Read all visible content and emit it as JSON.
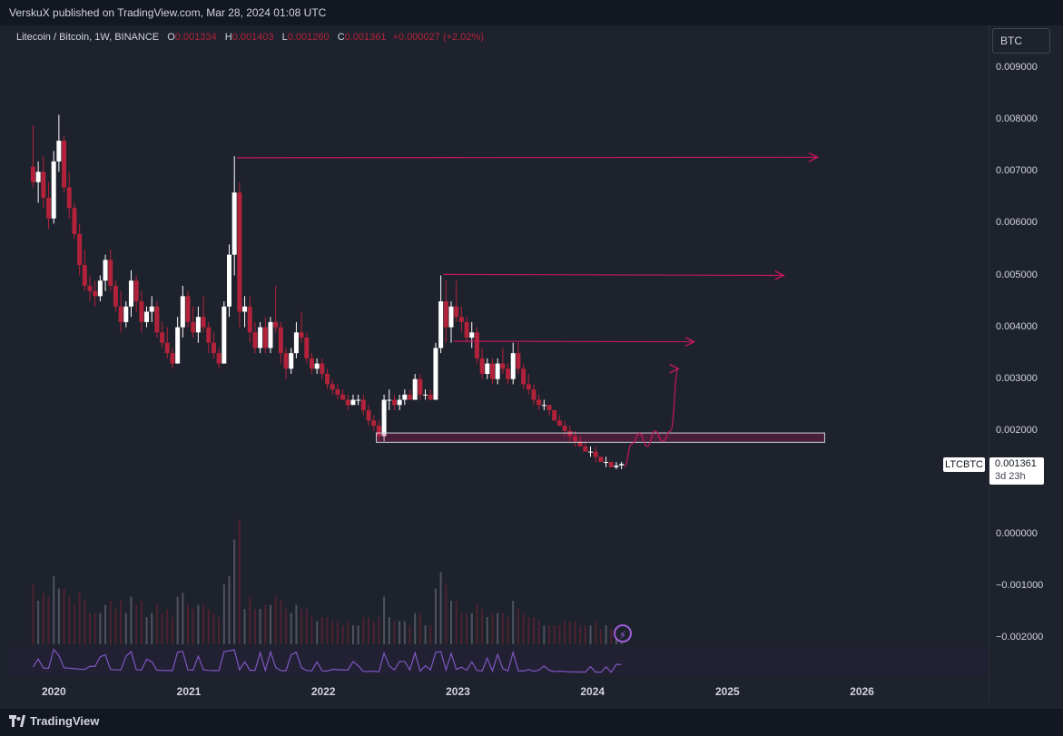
{
  "header": {
    "published": "VerskuX published on TradingView.com, Mar 28, 2024 01:08 UTC"
  },
  "legend": {
    "symbol": "Litecoin / Bitcoin, 1W, BINANCE",
    "o_key": "O",
    "o_val": "0.001334",
    "h_key": "H",
    "h_val": "0.001403",
    "l_key": "L",
    "l_val": "0.001260",
    "c_key": "C",
    "c_val": "0.001361",
    "change": "+0.000027 (+2.02%)"
  },
  "axis": {
    "currency": "BTC",
    "yticks": [
      "0.009000",
      "0.008000",
      "0.007000",
      "0.006000",
      "0.005000",
      "0.004000",
      "0.003000",
      "0.002000",
      "0.000000",
      "−0.001000",
      "−0.002000"
    ],
    "xticks": [
      "2020",
      "2021",
      "2022",
      "2023",
      "2024",
      "2025",
      "2026"
    ]
  },
  "last_price": {
    "ticker": "LTCBTC",
    "price": "0.001361",
    "countdown": "3d 23h"
  },
  "footer": {
    "brand": "TradingView"
  },
  "colors": {
    "up": "#ffffff",
    "down": "#b2223a",
    "drawing": "#c2185b",
    "rsi": "#7e57c2"
  },
  "chart_data": {
    "type": "candlestick",
    "interval": "1W",
    "ylim": [
      -0.0021,
      0.0095
    ],
    "price_scale_visible": [
      0.0,
      0.009
    ],
    "candles": [
      [
        "2019-11-04",
        0.0071,
        0.0079,
        0.0067,
        0.0068
      ],
      [
        "2019-11-18",
        0.0068,
        0.0072,
        0.0064,
        0.007
      ],
      [
        "2019-12-02",
        0.007,
        0.0073,
        0.0063,
        0.0065
      ],
      [
        "2019-12-16",
        0.0065,
        0.0068,
        0.0059,
        0.0061
      ],
      [
        "2019-12-30",
        0.0061,
        0.0074,
        0.006,
        0.0072
      ],
      [
        "2020-01-13",
        0.0072,
        0.0081,
        0.007,
        0.0076
      ],
      [
        "2020-01-27",
        0.0076,
        0.0077,
        0.0066,
        0.0067
      ],
      [
        "2020-02-10",
        0.0067,
        0.007,
        0.0061,
        0.0063
      ],
      [
        "2020-02-24",
        0.0063,
        0.0064,
        0.0057,
        0.0058
      ],
      [
        "2020-03-09",
        0.0058,
        0.006,
        0.005,
        0.0052
      ],
      [
        "2020-03-23",
        0.0052,
        0.0055,
        0.0047,
        0.0048
      ],
      [
        "2020-04-06",
        0.0048,
        0.005,
        0.0045,
        0.0047
      ],
      [
        "2020-04-20",
        0.0047,
        0.0049,
        0.0044,
        0.0046
      ],
      [
        "2020-05-04",
        0.0046,
        0.005,
        0.0045,
        0.0049
      ],
      [
        "2020-05-18",
        0.0049,
        0.0054,
        0.0047,
        0.0053
      ],
      [
        "2020-06-01",
        0.0053,
        0.0055,
        0.0047,
        0.0048
      ],
      [
        "2020-06-15",
        0.0048,
        0.0049,
        0.0043,
        0.0044
      ],
      [
        "2020-06-29",
        0.0044,
        0.0047,
        0.0039,
        0.0041
      ],
      [
        "2020-07-13",
        0.0041,
        0.0045,
        0.004,
        0.0044
      ],
      [
        "2020-07-27",
        0.0044,
        0.0051,
        0.0042,
        0.0049
      ],
      [
        "2020-08-10",
        0.0049,
        0.005,
        0.0043,
        0.0045
      ],
      [
        "2020-08-24",
        0.0045,
        0.0047,
        0.0039,
        0.0041
      ],
      [
        "2020-09-07",
        0.0041,
        0.0044,
        0.004,
        0.0043
      ],
      [
        "2020-09-21",
        0.0043,
        0.0046,
        0.0041,
        0.0044
      ],
      [
        "2020-10-05",
        0.0044,
        0.0045,
        0.0038,
        0.0039
      ],
      [
        "2020-10-19",
        0.0039,
        0.0041,
        0.0036,
        0.0037
      ],
      [
        "2020-11-02",
        0.0037,
        0.004,
        0.0034,
        0.0035
      ],
      [
        "2020-11-16",
        0.0035,
        0.0036,
        0.0032,
        0.0033
      ],
      [
        "2020-11-30",
        0.0033,
        0.0042,
        0.0033,
        0.004
      ],
      [
        "2020-12-14",
        0.004,
        0.0048,
        0.0038,
        0.0046
      ],
      [
        "2020-12-28",
        0.0046,
        0.0047,
        0.004,
        0.0041
      ],
      [
        "2021-01-11",
        0.0041,
        0.0044,
        0.0038,
        0.0039
      ],
      [
        "2021-01-25",
        0.0039,
        0.0044,
        0.0037,
        0.0042
      ],
      [
        "2021-02-08",
        0.0042,
        0.0046,
        0.0039,
        0.004
      ],
      [
        "2021-02-22",
        0.004,
        0.0041,
        0.0035,
        0.0037
      ],
      [
        "2021-03-08",
        0.0037,
        0.0039,
        0.0034,
        0.0035
      ],
      [
        "2021-03-22",
        0.0035,
        0.0036,
        0.0032,
        0.0033
      ],
      [
        "2021-04-05",
        0.0033,
        0.0045,
        0.0033,
        0.0044
      ],
      [
        "2021-04-19",
        0.0044,
        0.0056,
        0.0042,
        0.0054
      ],
      [
        "2021-05-03",
        0.0054,
        0.0073,
        0.005,
        0.0066
      ],
      [
        "2021-05-17",
        0.0066,
        0.0068,
        0.004,
        0.0043
      ],
      [
        "2021-05-31",
        0.0043,
        0.0046,
        0.004,
        0.0044
      ],
      [
        "2021-06-14",
        0.0044,
        0.0046,
        0.0037,
        0.0039
      ],
      [
        "2021-06-28",
        0.0039,
        0.0041,
        0.0035,
        0.0036
      ],
      [
        "2021-07-12",
        0.0036,
        0.0041,
        0.0035,
        0.004
      ],
      [
        "2021-07-26",
        0.004,
        0.0042,
        0.0035,
        0.0036
      ],
      [
        "2021-08-09",
        0.0036,
        0.0042,
        0.0035,
        0.0041
      ],
      [
        "2021-08-23",
        0.0041,
        0.0048,
        0.0039,
        0.004
      ],
      [
        "2021-09-06",
        0.004,
        0.0041,
        0.0033,
        0.0035
      ],
      [
        "2021-09-20",
        0.0035,
        0.0036,
        0.003,
        0.0032
      ],
      [
        "2021-10-04",
        0.0032,
        0.0036,
        0.0031,
        0.0035
      ],
      [
        "2021-10-18",
        0.0035,
        0.0041,
        0.0034,
        0.0039
      ],
      [
        "2021-11-01",
        0.0039,
        0.0043,
        0.0037,
        0.0038
      ],
      [
        "2021-11-15",
        0.0038,
        0.0039,
        0.0033,
        0.0034
      ],
      [
        "2021-11-29",
        0.0034,
        0.0035,
        0.0031,
        0.0032
      ],
      [
        "2021-12-13",
        0.0032,
        0.0034,
        0.0031,
        0.0033
      ],
      [
        "2021-12-27",
        0.0033,
        0.0034,
        0.003,
        0.0031
      ],
      [
        "2022-01-10",
        0.0031,
        0.0032,
        0.0028,
        0.0029
      ],
      [
        "2022-01-24",
        0.0029,
        0.003,
        0.0027,
        0.0028
      ],
      [
        "2022-02-07",
        0.0028,
        0.0029,
        0.0026,
        0.0027
      ],
      [
        "2022-02-21",
        0.0027,
        0.0028,
        0.0026,
        0.0026
      ],
      [
        "2022-03-07",
        0.0026,
        0.0027,
        0.0024,
        0.0025
      ],
      [
        "2022-03-21",
        0.0025,
        0.0027,
        0.0025,
        0.0026
      ],
      [
        "2022-04-04",
        0.0026,
        0.0027,
        0.0025,
        0.0026
      ],
      [
        "2022-04-18",
        0.0026,
        0.0027,
        0.0023,
        0.0024
      ],
      [
        "2022-05-02",
        0.0024,
        0.0025,
        0.0021,
        0.0022
      ],
      [
        "2022-05-16",
        0.0022,
        0.0023,
        0.002,
        0.0021
      ],
      [
        "2022-05-30",
        0.0021,
        0.0022,
        0.0018,
        0.0019
      ],
      [
        "2022-06-13",
        0.0019,
        0.0027,
        0.0018,
        0.0026
      ],
      [
        "2022-06-27",
        0.0026,
        0.0028,
        0.0024,
        0.0026
      ],
      [
        "2022-07-11",
        0.0026,
        0.0027,
        0.0024,
        0.0025
      ],
      [
        "2022-07-25",
        0.0025,
        0.0027,
        0.0024,
        0.0026
      ],
      [
        "2022-08-08",
        0.0026,
        0.0028,
        0.0025,
        0.0027
      ],
      [
        "2022-08-22",
        0.0027,
        0.0028,
        0.0026,
        0.0026
      ],
      [
        "2022-09-05",
        0.0026,
        0.0031,
        0.0026,
        0.003
      ],
      [
        "2022-09-19",
        0.003,
        0.0031,
        0.0026,
        0.0027
      ],
      [
        "2022-10-03",
        0.0027,
        0.0028,
        0.0026,
        0.0027
      ],
      [
        "2022-10-17",
        0.0027,
        0.0028,
        0.0026,
        0.0026
      ],
      [
        "2022-10-31",
        0.0026,
        0.0037,
        0.0026,
        0.0036
      ],
      [
        "2022-11-14",
        0.0036,
        0.005,
        0.0035,
        0.0045
      ],
      [
        "2022-11-28",
        0.0045,
        0.0049,
        0.0037,
        0.004
      ],
      [
        "2022-12-12",
        0.004,
        0.0045,
        0.0037,
        0.0044
      ],
      [
        "2022-12-26",
        0.0044,
        0.0049,
        0.0041,
        0.0042
      ],
      [
        "2023-01-09",
        0.0042,
        0.0044,
        0.0039,
        0.0041
      ],
      [
        "2023-01-23",
        0.0041,
        0.0042,
        0.0037,
        0.0038
      ],
      [
        "2023-02-06",
        0.0038,
        0.0041,
        0.0036,
        0.0039
      ],
      [
        "2023-02-20",
        0.0039,
        0.004,
        0.0033,
        0.0034
      ],
      [
        "2023-03-06",
        0.0034,
        0.0036,
        0.003,
        0.0031
      ],
      [
        "2023-03-20",
        0.0031,
        0.0034,
        0.003,
        0.0033
      ],
      [
        "2023-04-03",
        0.0033,
        0.0034,
        0.0029,
        0.003
      ],
      [
        "2023-04-17",
        0.003,
        0.0034,
        0.0029,
        0.0033
      ],
      [
        "2023-05-01",
        0.0033,
        0.0036,
        0.0031,
        0.0032
      ],
      [
        "2023-05-15",
        0.0032,
        0.0033,
        0.0029,
        0.003
      ],
      [
        "2023-05-29",
        0.003,
        0.0037,
        0.0029,
        0.0035
      ],
      [
        "2023-06-12",
        0.0035,
        0.0037,
        0.0031,
        0.0032
      ],
      [
        "2023-06-26",
        0.0032,
        0.0033,
        0.0028,
        0.0029
      ],
      [
        "2023-07-10",
        0.0029,
        0.0031,
        0.0027,
        0.0028
      ],
      [
        "2023-07-24",
        0.0028,
        0.0029,
        0.0025,
        0.0026
      ],
      [
        "2023-08-07",
        0.0026,
        0.0027,
        0.0024,
        0.0025
      ],
      [
        "2023-08-21",
        0.0025,
        0.0026,
        0.0024,
        0.0025
      ],
      [
        "2023-09-04",
        0.0025,
        0.0025,
        0.0023,
        0.0024
      ],
      [
        "2023-09-18",
        0.0024,
        0.0024,
        0.0022,
        0.0022
      ],
      [
        "2023-10-02",
        0.0022,
        0.0023,
        0.0021,
        0.0021
      ],
      [
        "2023-10-16",
        0.0021,
        0.0022,
        0.0019,
        0.002
      ],
      [
        "2023-10-30",
        0.002,
        0.0021,
        0.0018,
        0.0019
      ],
      [
        "2023-11-13",
        0.0019,
        0.002,
        0.0017,
        0.0018
      ],
      [
        "2023-11-27",
        0.0018,
        0.0019,
        0.0017,
        0.0017
      ],
      [
        "2023-12-11",
        0.0017,
        0.0018,
        0.0016,
        0.0016
      ],
      [
        "2023-12-25",
        0.0016,
        0.0017,
        0.0015,
        0.0016
      ],
      [
        "2024-01-08",
        0.0016,
        0.0017,
        0.0014,
        0.0015
      ],
      [
        "2024-01-22",
        0.0015,
        0.0015,
        0.0014,
        0.0014
      ],
      [
        "2024-02-05",
        0.0014,
        0.0015,
        0.0013,
        0.0014
      ],
      [
        "2024-02-19",
        0.0014,
        0.0014,
        0.0013,
        0.0013
      ],
      [
        "2024-03-04",
        0.0013,
        0.0014,
        0.00126,
        0.00133
      ],
      [
        "2024-03-18",
        0.001334,
        0.001403,
        0.00126,
        0.001361
      ]
    ],
    "drawings": {
      "rays": [
        {
          "from": [
            "2021-05-10",
            0.00727
          ],
          "to": [
            "2025-09-01",
            0.00728
          ]
        },
        {
          "from": [
            "2022-11-21",
            0.00502
          ],
          "to": [
            "2025-06-01",
            0.005
          ]
        },
        {
          "from": [
            "2022-12-19",
            0.00373
          ],
          "to": [
            "2024-10-01",
            0.00372
          ]
        }
      ],
      "zone": {
        "from": "2022-05-23",
        "to": "2025-09-20",
        "top": 0.00196,
        "bottom": 0.00178
      },
      "projection": [
        [
          "2024-03-25",
          0.0013
        ],
        [
          "2024-04-15",
          0.00175
        ],
        [
          "2024-05-06",
          0.00195
        ],
        [
          "2024-05-27",
          0.0017
        ],
        [
          "2024-06-17",
          0.002
        ],
        [
          "2024-07-08",
          0.0018
        ],
        [
          "2024-07-29",
          0.002
        ],
        [
          "2024-08-19",
          0.0032
        ]
      ]
    }
  }
}
